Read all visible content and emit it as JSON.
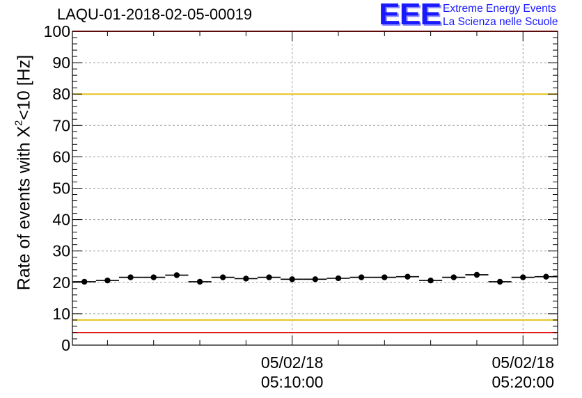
{
  "chart_data": {
    "type": "scatter",
    "title": "LAQU-01-2018-02-05-00019",
    "ylabel_parts": [
      "Rate of events with X",
      "2",
      "<10 [Hz]"
    ],
    "xlabel": "",
    "ylim": [
      0,
      100
    ],
    "yticks": [
      "0",
      "10",
      "20",
      "30",
      "40",
      "50",
      "60",
      "70",
      "80",
      "90",
      "100"
    ],
    "x_unit": "minutes after 05/02/18 05:00:00",
    "xlim": [
      0.48,
      21.5
    ],
    "xtick_labels": [
      {
        "x": 10,
        "date": "05/02/18",
        "time": "05:10:00"
      },
      {
        "x": 20,
        "date": "05/02/18",
        "time": "05:20:00"
      }
    ],
    "grid": true,
    "reference_lines": [
      {
        "y": 100,
        "color": "#e61a1a"
      },
      {
        "y": 80,
        "color": "#e6c21a"
      },
      {
        "y": 8,
        "color": "#e6c21a"
      },
      {
        "y": 4,
        "color": "#e61a1a"
      }
    ],
    "series": [
      {
        "x": [
          1,
          2,
          3,
          4,
          5,
          6,
          7,
          8,
          9,
          10,
          11,
          12,
          13,
          14,
          15,
          16,
          17,
          18,
          19,
          20,
          21
        ],
        "values": [
          20.2,
          20.6,
          21.6,
          21.6,
          22.3,
          20.2,
          21.6,
          21.2,
          21.6,
          21.0,
          21.0,
          21.3,
          21.6,
          21.6,
          21.8,
          20.6,
          21.6,
          22.4,
          20.2,
          21.6,
          21.8
        ],
        "xerr_minutes": 0.5
      }
    ]
  },
  "logo": {
    "mark": "EEE",
    "line1": "Extreme Energy Events",
    "line2": "La Scienza nelle Scuole",
    "color": "#1a1aff"
  }
}
